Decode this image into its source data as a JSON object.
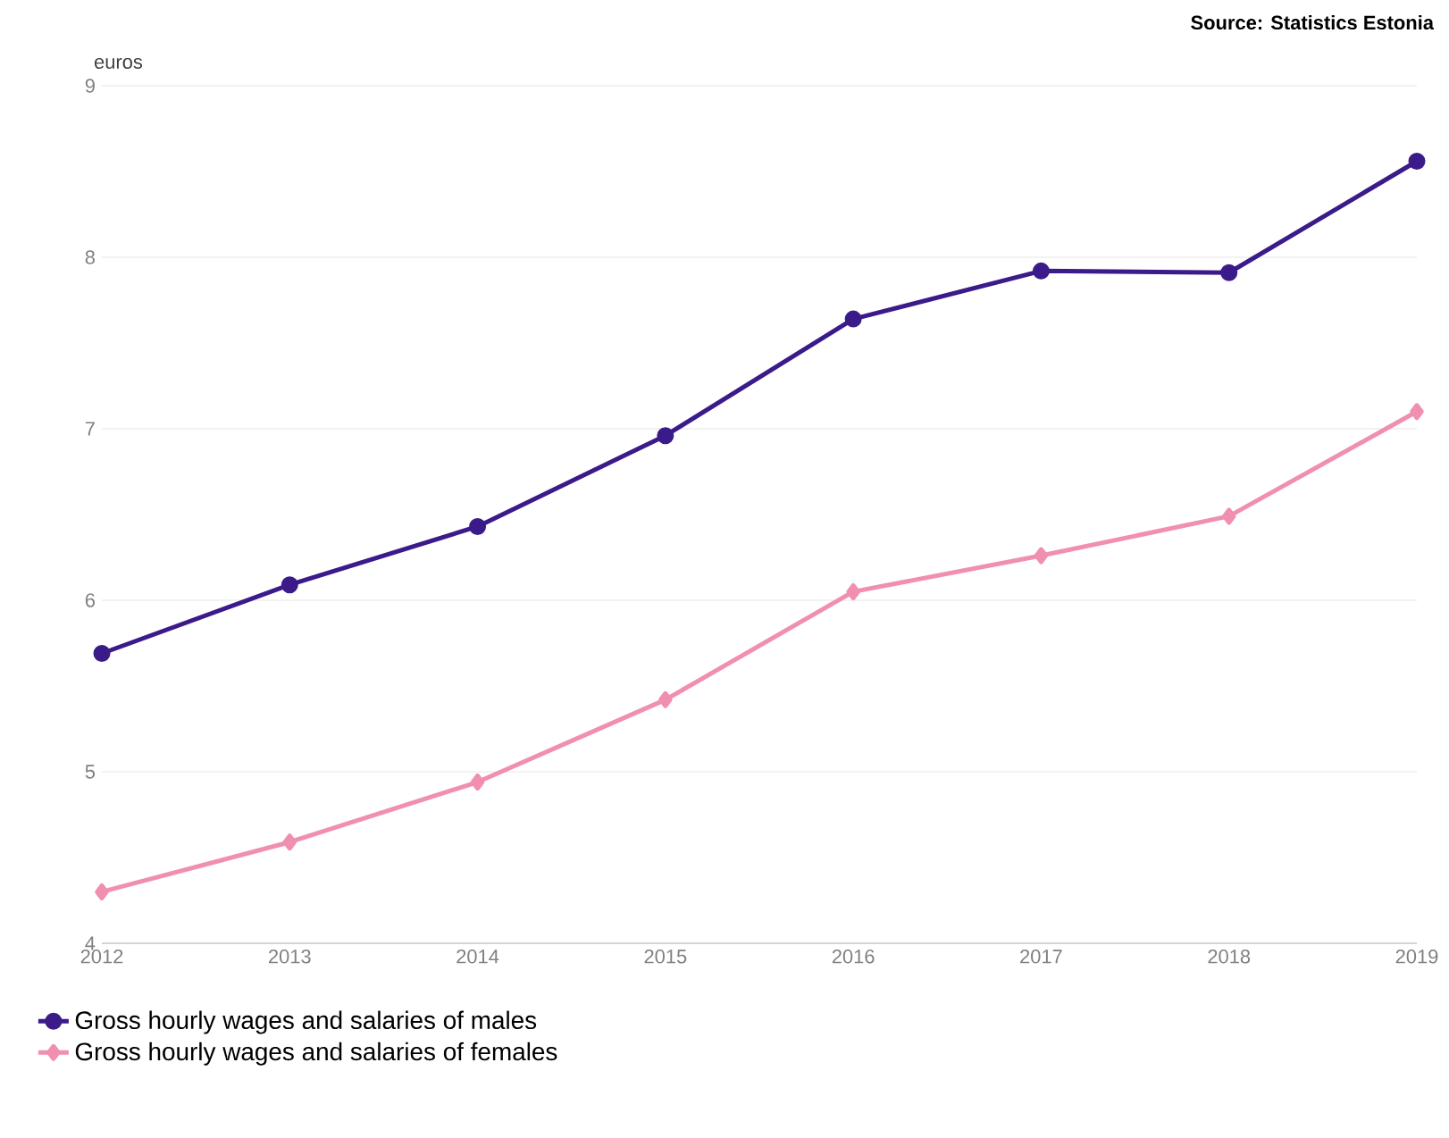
{
  "chart_data": {
    "type": "line",
    "ylabel": "euros",
    "annotations": [
      "Source: Statistics Estonia"
    ],
    "x": [
      2012,
      2013,
      2014,
      2015,
      2016,
      2017,
      2018,
      2019
    ],
    "series": [
      {
        "name": "Gross hourly wages and salaries of males",
        "color": "#3b1a8a",
        "marker": "circle",
        "values": [
          5.69,
          6.09,
          6.43,
          6.96,
          7.64,
          7.92,
          7.91,
          8.56
        ]
      },
      {
        "name": "Gross hourly wages and salaries of females",
        "color": "#f08fb2",
        "marker": "diamond",
        "values": [
          4.3,
          4.59,
          4.94,
          5.42,
          6.05,
          6.26,
          6.49,
          7.1
        ]
      }
    ],
    "xlim": [
      2012,
      2019
    ],
    "ylim": [
      4,
      9
    ],
    "xticks": [
      2012,
      2013,
      2014,
      2015,
      2016,
      2017,
      2018,
      2019
    ],
    "yticks": [
      4,
      5,
      6,
      7,
      8,
      9
    ],
    "grid": "y",
    "legend": "bottom",
    "line_style": "solid"
  }
}
